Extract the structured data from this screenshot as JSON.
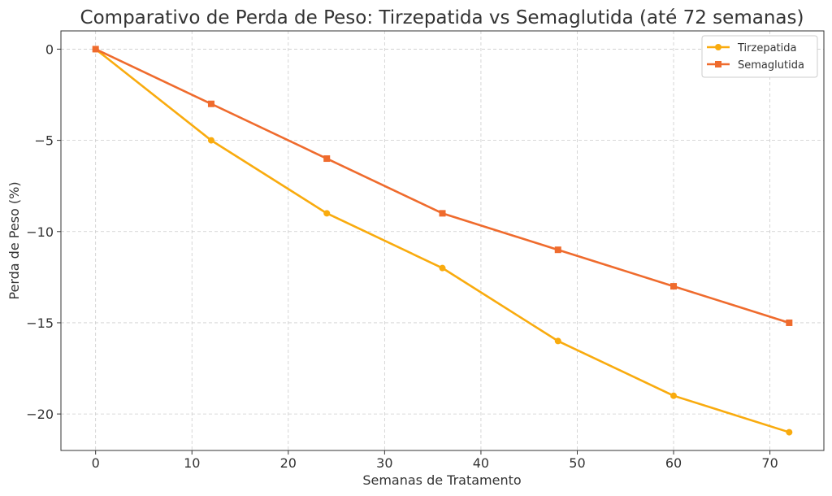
{
  "chart_data": {
    "type": "line",
    "title": "Comparativo de Perda de Peso: Tirzepatida vs Semaglutida (até 72 semanas)",
    "xlabel": "Semanas de Tratamento",
    "ylabel": "Perda de Peso (%)",
    "x": [
      0,
      12,
      24,
      36,
      48,
      60,
      72
    ],
    "xlim": [
      -3.6,
      75.6
    ],
    "ylim": [
      -22,
      1
    ],
    "xticks": [
      0,
      10,
      20,
      30,
      40,
      50,
      60,
      70
    ],
    "xtick_labels": [
      "0",
      "10",
      "20",
      "30",
      "40",
      "50",
      "60",
      "70"
    ],
    "yticks": [
      0,
      -5,
      -10,
      -15,
      -20
    ],
    "ytick_labels": [
      "0",
      "−5",
      "−10",
      "−15",
      "−20"
    ],
    "grid": true,
    "legend_position": "top-right",
    "series": [
      {
        "name": "Tirzepatida",
        "values": [
          0,
          -5,
          -9,
          -12,
          -16,
          -19,
          -21
        ],
        "color": "#f9ab0e",
        "marker": "circle"
      },
      {
        "name": "Semaglutida",
        "values": [
          0,
          -3,
          -6,
          -9,
          -11,
          -13,
          -15
        ],
        "color": "#ef6b2d",
        "marker": "square"
      }
    ]
  }
}
